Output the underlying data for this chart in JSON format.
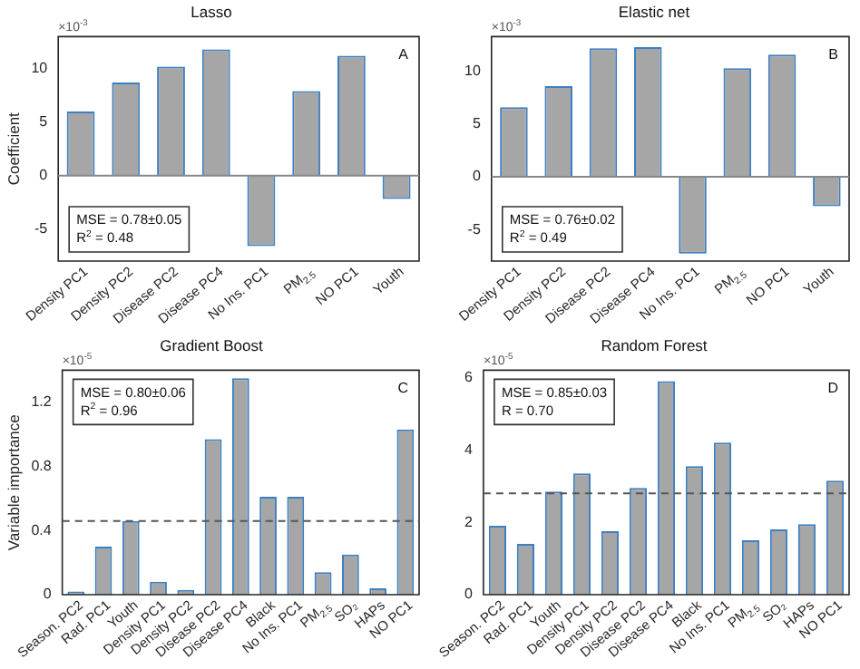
{
  "chart_data": [
    {
      "type": "bar",
      "title": "Lasso",
      "ylabel": "Coefficient",
      "categories": [
        "Density PC1",
        "Density PC2",
        "Disease PC2",
        "Disease PC4",
        "No Ins. PC1",
        "PM$_{2.5}$",
        "NO PC1",
        "Youth"
      ],
      "values": [
        6.0,
        8.7,
        10.2,
        11.8,
        -6.6,
        7.9,
        11.2,
        -2.2
      ],
      "color": "#a6a6a6",
      "ylim": [
        -8,
        13
      ],
      "yticks": [
        -5,
        0,
        5,
        10
      ],
      "grid": false,
      "legend": false,
      "ref_lines": [
        {
          "axis": "y",
          "value": 0,
          "line_style": "solid",
          "color": "#888888"
        }
      ],
      "annotations": [
        "×10$^{-3}$",
        "A",
        "MSE = 0.78±0.05",
        "R$^{2}$ = 0.48"
      ]
    },
    {
      "type": "bar",
      "title": "Elastic net",
      "categories": [
        "Density PC1",
        "Density PC2",
        "Disease PC2",
        "Disease PC4",
        "No Ins. PC1",
        "PM$_{2.5}$",
        "NO PC1",
        "Youth"
      ],
      "values": [
        6.6,
        8.6,
        12.2,
        12.3,
        -7.3,
        10.3,
        11.6,
        -2.8
      ],
      "color": "#a6a6a6",
      "ylim": [
        -8,
        13.3
      ],
      "yticks": [
        -5,
        0,
        5,
        10
      ],
      "grid": false,
      "legend": false,
      "ref_lines": [
        {
          "axis": "y",
          "value": 0,
          "line_style": "solid",
          "color": "#888888"
        }
      ],
      "annotations": [
        "×10$^{-3}$",
        "B",
        "MSE = 0.76±0.02",
        "R$^{2}$ = 0.49"
      ]
    },
    {
      "type": "bar",
      "title": "Gradient Boost",
      "ylabel": "Variable importance",
      "categories": [
        "Season. PC2",
        "Rad. PC1",
        "Youth",
        "Density PC1",
        "Density PC2",
        "Disease PC2",
        "Disease PC4",
        "Black",
        "No Ins. PC1",
        "PM$_{2.5}$",
        "SO₂",
        "HAPs",
        "NO PC1"
      ],
      "values": [
        0.02,
        0.3,
        0.46,
        0.08,
        0.03,
        0.97,
        1.35,
        0.61,
        0.61,
        0.14,
        0.25,
        0.04,
        1.03
      ],
      "color": "#a6a6a6",
      "ylim": [
        0,
        1.4
      ],
      "yticks": [
        0,
        0.4,
        0.8,
        1.2
      ],
      "grid": false,
      "legend": false,
      "ref_lines": [
        {
          "axis": "y",
          "value": 0.46,
          "line_style": "dashed",
          "color": "#555555"
        }
      ],
      "annotations": [
        "×10$^{-5}$",
        "C",
        "MSE = 0.80±0.06",
        "R$^{2}$ = 0.96"
      ]
    },
    {
      "type": "bar",
      "title": "Random Forest",
      "categories": [
        "Season. PC2",
        "Rad. PC1",
        "Youth",
        "Density PC1",
        "Density PC2",
        "Disease PC2",
        "Disease PC4",
        "Black",
        "No Ins. PC1",
        "PM$_{2.5}$",
        "SO₂",
        "HAPs",
        "NO PC1"
      ],
      "values": [
        1.9,
        1.4,
        2.85,
        3.35,
        1.75,
        2.95,
        5.9,
        3.55,
        4.2,
        1.5,
        1.8,
        1.95,
        3.15
      ],
      "color": "#a6a6a6",
      "ylim": [
        0,
        6.2
      ],
      "yticks": [
        0,
        2,
        4,
        6
      ],
      "grid": false,
      "legend": false,
      "ref_lines": [
        {
          "axis": "y",
          "value": 2.8,
          "line_style": "dashed",
          "color": "#555555"
        }
      ],
      "annotations": [
        "×10$^{-5}$",
        "D",
        "MSE = 0.85±0.03",
        "R = 0.70"
      ]
    }
  ]
}
